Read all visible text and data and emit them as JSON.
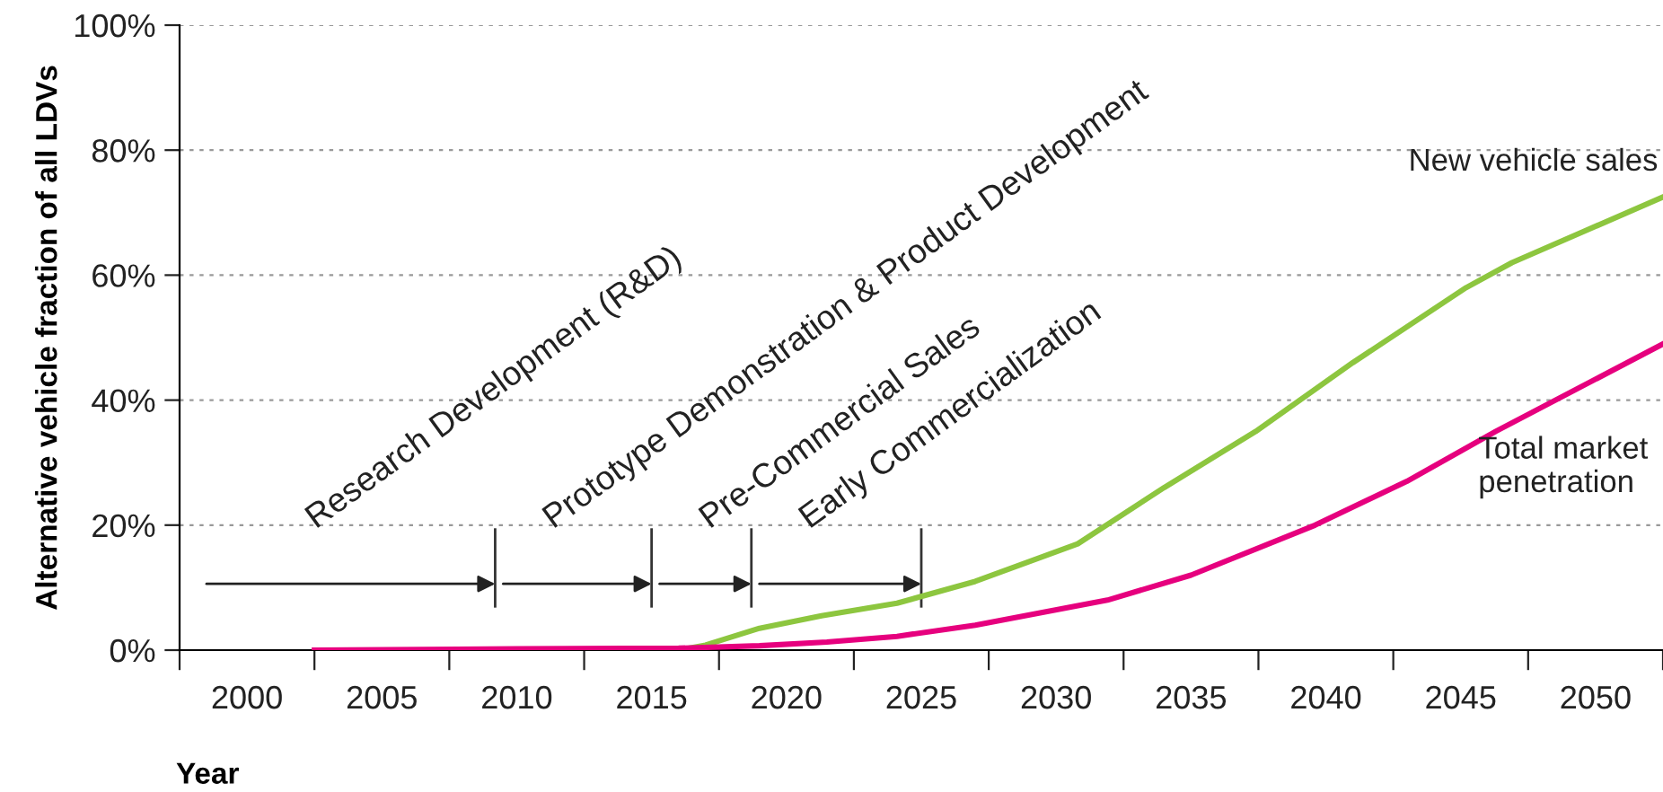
{
  "chart_data": {
    "type": "line",
    "xlabel": "Year",
    "ylabel": "Alternative vehicle fraction of all LDVs",
    "xlim": [
      1997.5,
      2052.5
    ],
    "ylim": [
      0,
      100
    ],
    "xticks": [
      {
        "value": 2000,
        "label": "2000"
      },
      {
        "value": 2005,
        "label": "2005"
      },
      {
        "value": 2010,
        "label": "2010"
      },
      {
        "value": 2015,
        "label": "2015"
      },
      {
        "value": 2020,
        "label": "2020"
      },
      {
        "value": 2025,
        "label": "2025"
      },
      {
        "value": 2030,
        "label": "2030"
      },
      {
        "value": 2035,
        "label": "2035"
      },
      {
        "value": 2040,
        "label": "2040"
      },
      {
        "value": 2045,
        "label": "2045"
      },
      {
        "value": 2050,
        "label": "2050"
      },
      {
        "value": 1997.5,
        "label": null
      },
      {
        "value": 2002.5,
        "label": null
      },
      {
        "value": 2007.5,
        "label": null
      },
      {
        "value": 2012.5,
        "label": null
      },
      {
        "value": 2017.5,
        "label": null
      },
      {
        "value": 2022.5,
        "label": null
      },
      {
        "value": 2027.5,
        "label": null
      },
      {
        "value": 2032.5,
        "label": null
      },
      {
        "value": 2037.5,
        "label": null
      },
      {
        "value": 2042.5,
        "label": null
      },
      {
        "value": 2047.5,
        "label": null
      },
      {
        "value": 2052.5,
        "label": null
      }
    ],
    "yticks": [
      {
        "value": 0,
        "label": "0%"
      },
      {
        "value": 20,
        "label": "20%"
      },
      {
        "value": 40,
        "label": "40%"
      },
      {
        "value": 60,
        "label": "60%"
      },
      {
        "value": 80,
        "label": "80%"
      },
      {
        "value": 100,
        "label": "100%"
      }
    ],
    "grid": "y",
    "legend": false,
    "marker": "none",
    "line_style": "solid",
    "series": [
      {
        "name": "New vehicle sales",
        "color": "#8dc63f",
        "x": [
          2016,
          2017,
          2019,
          2021.3,
          2024.1,
          2027,
          2030.8,
          2034,
          2037.4,
          2041,
          2045.2,
          2046.9,
          2052.5
        ],
        "values": [
          0,
          0.8,
          3.5,
          5.5,
          7.5,
          11,
          17,
          26,
          35,
          46,
          58,
          62,
          72.5
        ]
      },
      {
        "name": "Total market\npenetration",
        "color": "#e6007e",
        "x": [
          2002.5,
          2010,
          2016,
          2019,
          2021.5,
          2024.1,
          2027,
          2031.9,
          2035,
          2039.6,
          2043,
          2046.3,
          2052.5
        ],
        "values": [
          0,
          0.2,
          0.3,
          0.7,
          1.3,
          2.2,
          4,
          8,
          12,
          20,
          27,
          35,
          49
        ]
      }
    ],
    "ref_lines": [
      {
        "axis": "x",
        "value": 2009.2
      },
      {
        "axis": "x",
        "value": 2015
      },
      {
        "axis": "x",
        "value": 2018.7
      },
      {
        "axis": "x",
        "value": 2025
      }
    ],
    "annotations": [
      "Research Development (R&D)",
      "Prototype Demonstration & Product Development",
      "Pre-Commercial Sales",
      "Early Commercialization"
    ]
  }
}
